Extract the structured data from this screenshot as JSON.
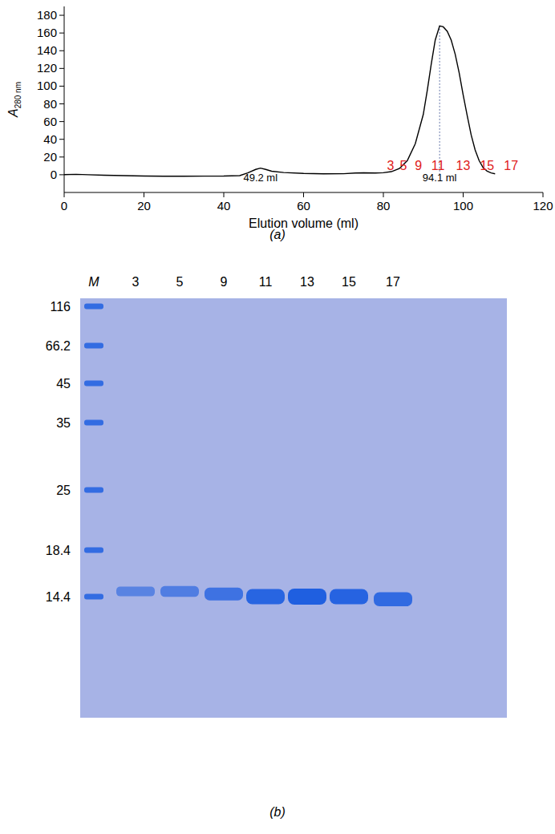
{
  "chart_data": [
    {
      "type": "line",
      "panel": "(a)",
      "xlabel": "Elution volume (ml)",
      "ylabel": "A",
      "ylabel_sub": "280 nm",
      "color": "#000000",
      "x": [
        0,
        3,
        6,
        10,
        15,
        20,
        25,
        30,
        35,
        40,
        44,
        46,
        48,
        49.2,
        50.5,
        52,
        55,
        60,
        65,
        70,
        73,
        75,
        78,
        80,
        82,
        84,
        86,
        88,
        90,
        91,
        92,
        93,
        94.1,
        95,
        96,
        97,
        98,
        99,
        100,
        101,
        102,
        103,
        104,
        105,
        106,
        107,
        108
      ],
      "values": [
        0.2,
        0.5,
        0,
        -0.5,
        -1,
        -1.5,
        -1.7,
        -1.7,
        -1.6,
        -1.5,
        -1,
        2,
        6,
        7.5,
        6,
        4,
        2.5,
        1.5,
        1,
        1.2,
        2,
        2.2,
        2,
        2.3,
        3.5,
        7,
        16,
        35,
        68,
        95,
        125,
        152,
        168,
        167,
        162,
        152,
        136,
        115,
        90,
        67,
        45,
        28,
        16,
        8,
        4,
        2,
        1
      ],
      "xlim": [
        0,
        120
      ],
      "xticks": [
        0,
        20,
        40,
        60,
        80,
        100,
        120
      ],
      "ylim": [
        -20,
        190
      ],
      "yticks": [
        0,
        20,
        40,
        60,
        80,
        100,
        120,
        140,
        160,
        180
      ],
      "annotations": [
        {
          "text": "49.2 ml",
          "x": 49.2,
          "y": -7
        },
        {
          "text": "94.1 ml",
          "x": 94.1,
          "y": -7,
          "line_style": "dotted"
        }
      ],
      "fractions": {
        "labels": [
          "3",
          "5",
          "9",
          "11",
          "13",
          "15",
          "17"
        ],
        "x": [
          81.8,
          85,
          88.8,
          93.7,
          100,
          106,
          112
        ],
        "y": 5,
        "color": "#e02020"
      }
    },
    {
      "type": "gel",
      "panel": "(b)",
      "lanes": [
        "M",
        "3",
        "5",
        "9",
        "11",
        "13",
        "15",
        "17"
      ],
      "marker_kda": [
        116,
        66.2,
        45,
        35,
        25,
        18.4,
        14.4
      ],
      "band_kda": [
        null,
        14.8,
        14.8,
        14.6,
        14.4,
        14.4,
        14.4,
        14.2
      ],
      "band_intensity": [
        null,
        0.35,
        0.45,
        0.65,
        0.9,
        1.0,
        0.92,
        0.8
      ],
      "color": "#1f5fe0"
    }
  ]
}
